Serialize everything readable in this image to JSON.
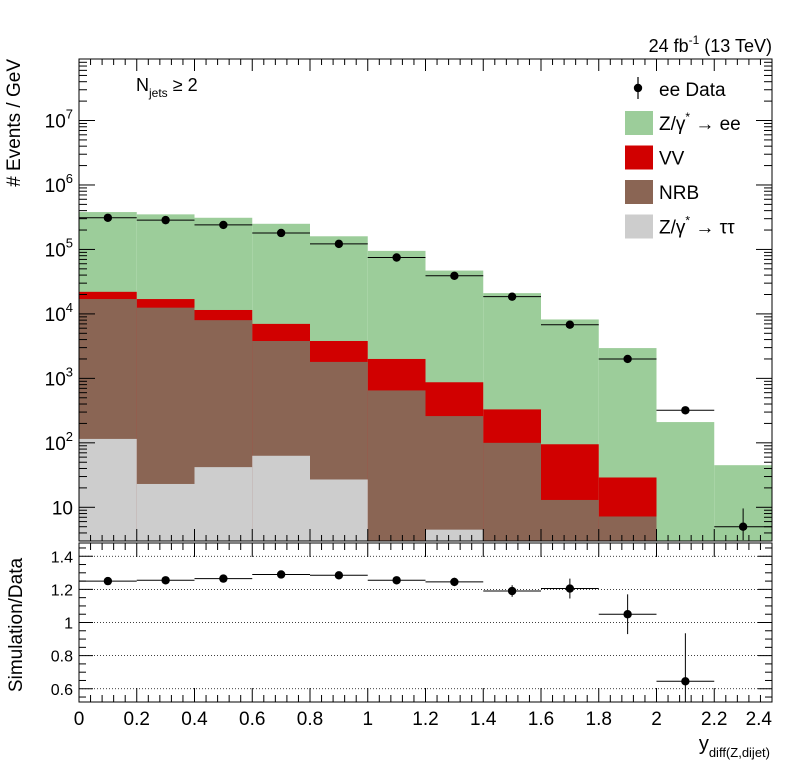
{
  "chart_data": [
    {
      "type": "bar",
      "stacked": true,
      "yscale": "log",
      "ylabel": "# Events / GeV",
      "xlim": [
        0,
        2.4
      ],
      "ylim_display": [
        3,
        90000000
      ],
      "lumi_label": "24 fb",
      "lumi_sup": "-1",
      "lumi_energy": "(13 TeV)",
      "selection_main": "N",
      "selection_sub": "jets",
      "selection_rest": "≥ 2",
      "bin_edges": [
        0,
        0.2,
        0.4,
        0.6,
        0.8,
        1.0,
        1.2,
        1.4,
        1.6,
        1.8,
        2.0,
        2.2,
        2.4
      ],
      "y_ticks": [
        {
          "value": 10,
          "base": "10",
          "exp": ""
        },
        {
          "value": 100,
          "base": "10",
          "exp": "2"
        },
        {
          "value": 1000,
          "base": "10",
          "exp": "3"
        },
        {
          "value": 10000,
          "base": "10",
          "exp": "4"
        },
        {
          "value": 100000,
          "base": "10",
          "exp": "5"
        },
        {
          "value": 1000000,
          "base": "10",
          "exp": "6"
        },
        {
          "value": 10000000,
          "base": "10",
          "exp": "7"
        }
      ],
      "stack_totals": [
        {
          "name": "Z/γ* → ee",
          "label_main": "Z/γ",
          "label_sup": "*",
          "label_rest": "→ ee",
          "color": "#9ccd9a",
          "values": [
            380000,
            350000,
            310000,
            250000,
            160000,
            95000,
            47000,
            21000,
            8200,
            2950,
            210,
            45
          ]
        },
        {
          "name": "VV",
          "label_main": "VV",
          "label_sup": "",
          "label_rest": "",
          "color": "#d10000",
          "values": [
            22000,
            17000,
            11500,
            7000,
            3800,
            2000,
            870,
            330,
            95,
            29,
            3,
            2
          ]
        },
        {
          "name": "NRB",
          "label_main": "NRB",
          "label_sup": "",
          "label_rest": "",
          "color": "#8a6554",
          "values": [
            17000,
            12500,
            8000,
            3800,
            1800,
            650,
            260,
            100,
            13,
            7.2,
            2,
            2
          ]
        },
        {
          "name": "Z/γ* → ττ",
          "label_main": "Z/γ",
          "label_sup": "*",
          "label_rest": "→ ττ",
          "color": "#cdcdcd",
          "values": [
            115,
            23,
            42,
            63,
            27,
            2,
            4.5,
            2,
            2,
            2,
            2,
            2
          ]
        }
      ],
      "data_series": {
        "name": "ee Data",
        "x": [
          0.1,
          0.3,
          0.5,
          0.7,
          0.9,
          1.1,
          1.3,
          1.5,
          1.7,
          1.9,
          2.1,
          2.3
        ],
        "y": [
          310000,
          285000,
          240000,
          180000,
          122000,
          75000,
          39000,
          18500,
          6800,
          2000,
          320,
          5
        ],
        "yerr_low": [
          0,
          0,
          0,
          0,
          0,
          0,
          0,
          0,
          0,
          0,
          40,
          1.9
        ],
        "yerr_high": [
          0,
          0,
          0,
          0,
          0,
          0,
          0,
          0,
          0,
          0,
          40,
          4.6
        ]
      }
    },
    {
      "type": "scatter",
      "ylabel": "Simulation/Data",
      "xlabel_main": "y",
      "xlabel_sub": "diff(Z,dijet)",
      "xlim": [
        0,
        2.4
      ],
      "ylim": [
        0.52,
        1.48
      ],
      "x_ticks": [
        "0",
        "0.2",
        "0.4",
        "0.6",
        "0.8",
        "1",
        "1.2",
        "1.4",
        "1.6",
        "1.8",
        "2",
        "2.2",
        "2.4"
      ],
      "y_ticks": [
        "0.6",
        "0.8",
        "1",
        "1.2",
        "1.4"
      ],
      "gridlines_y": [
        0.6,
        0.8,
        1.0,
        1.2,
        1.4
      ],
      "x": [
        0.1,
        0.3,
        0.5,
        0.7,
        0.9,
        1.1,
        1.3,
        1.5,
        1.7,
        1.9,
        2.1
      ],
      "y": [
        1.25,
        1.255,
        1.265,
        1.29,
        1.285,
        1.255,
        1.245,
        1.19,
        1.205,
        1.05,
        0.645
      ],
      "yerr": [
        0.012,
        0.012,
        0.013,
        0.015,
        0.016,
        0.018,
        0.025,
        0.035,
        0.06,
        0.12,
        0.29
      ]
    }
  ]
}
